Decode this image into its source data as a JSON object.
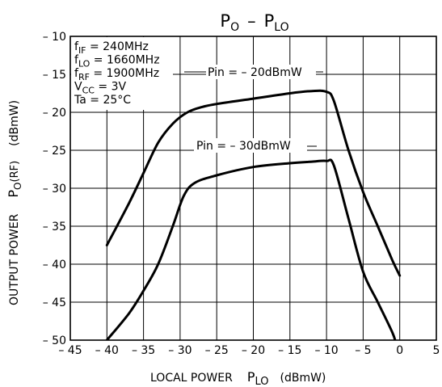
{
  "chart_data": {
    "type": "line",
    "title_main": "P",
    "title_main_sub": "O",
    "title_sep": "–",
    "title_second": "P",
    "title_second_sub": "LO",
    "xlabel_text": "LOCAL POWER",
    "xlabel_sym": "P",
    "xlabel_sym_sub": "LO",
    "xlabel_unit": "(dBmW)",
    "ylabel_text": "OUTPUT POWER",
    "ylabel_sym": "P",
    "ylabel_sym_sub": "O",
    "ylabel_sym_tail": "(RF)",
    "ylabel_unit": "(dBmW)",
    "xlim": [
      -45,
      5
    ],
    "ylim": [
      -50,
      -10
    ],
    "x_ticks": [
      -45,
      -40,
      -35,
      -30,
      -25,
      -20,
      -15,
      -10,
      -5,
      0,
      5
    ],
    "x_tick_labels": [
      "– 45",
      "– 40",
      "– 35",
      "– 30",
      "– 25",
      "– 20",
      "– 15",
      "– 10",
      "– 5",
      "0",
      "5"
    ],
    "y_ticks": [
      -10,
      -15,
      -20,
      -25,
      -30,
      -35,
      -40,
      -45,
      -50
    ],
    "y_tick_labels": [
      "– 10",
      "– 15",
      "– 20",
      "– 25",
      "– 30",
      "– 35",
      "– 40",
      "– 45",
      "– 50"
    ],
    "grid": true,
    "conditions": [
      {
        "pre": "f",
        "sub": "IF",
        "post": " = 240MHz"
      },
      {
        "pre": "f",
        "sub": "LO",
        "post": " = 1660MHz"
      },
      {
        "pre": "f",
        "sub": "RF",
        "post": " = 1900MHz"
      },
      {
        "pre": "V",
        "sub": "CC",
        "post": " = 3V"
      },
      {
        "pre": "Ta = 25°C",
        "sub": "",
        "post": ""
      }
    ],
    "series": [
      {
        "name": "Pin = – 20dBmW",
        "x": [
          -40,
          -37,
          -35,
          -33,
          -31,
          -29,
          -27,
          -25,
          -20,
          -15,
          -12,
          -10,
          -9,
          -7,
          -5,
          -3,
          -1,
          0
        ],
        "y": [
          -37.5,
          -32,
          -28,
          -24,
          -21.5,
          -20,
          -19.3,
          -18.9,
          -18.2,
          -17.5,
          -17.2,
          -17.3,
          -18.5,
          -25,
          -30.5,
          -35,
          -39.5,
          -41.5
        ]
      },
      {
        "name": "Pin = – 30dBmW",
        "x": [
          -40,
          -37,
          -35,
          -33,
          -31,
          -29.5,
          -28,
          -25,
          -20,
          -15,
          -12,
          -10,
          -9,
          -7,
          -5,
          -3,
          -1,
          -0.5
        ],
        "y": [
          -50,
          -46.5,
          -43.5,
          -40,
          -35,
          -31,
          -29.3,
          -28.3,
          -27.2,
          -26.7,
          -26.5,
          -26.4,
          -27,
          -34,
          -41,
          -45,
          -49,
          -50.5
        ]
      }
    ]
  }
}
